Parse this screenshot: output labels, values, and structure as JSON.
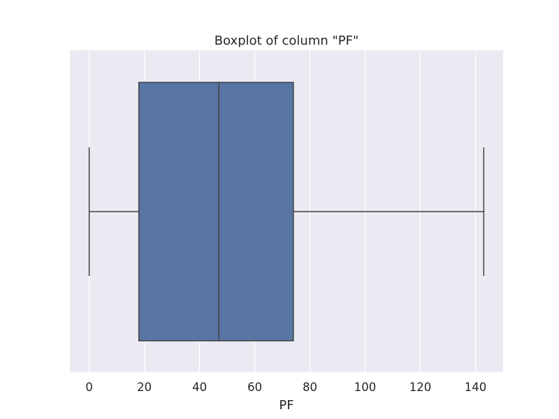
{
  "chart_data": {
    "type": "boxplot",
    "title": "Boxplot of column \"PF\"",
    "xlabel": "PF",
    "ylabel": "",
    "orientation": "horizontal",
    "xlim": [
      -7,
      150
    ],
    "xticks": [
      0,
      20,
      40,
      60,
      80,
      100,
      120,
      140
    ],
    "xtick_labels": [
      "0",
      "20",
      "40",
      "60",
      "80",
      "100",
      "120",
      "140"
    ],
    "box": {
      "whisker_low": 0,
      "q1": 18,
      "median": 47,
      "q3": 74,
      "whisker_high": 143
    },
    "grid": true,
    "colors": {
      "background": "#eaeaf2",
      "grid": "#ffffff",
      "box_fill": "#5875a4",
      "lines": "#404040",
      "text": "#262626"
    }
  }
}
